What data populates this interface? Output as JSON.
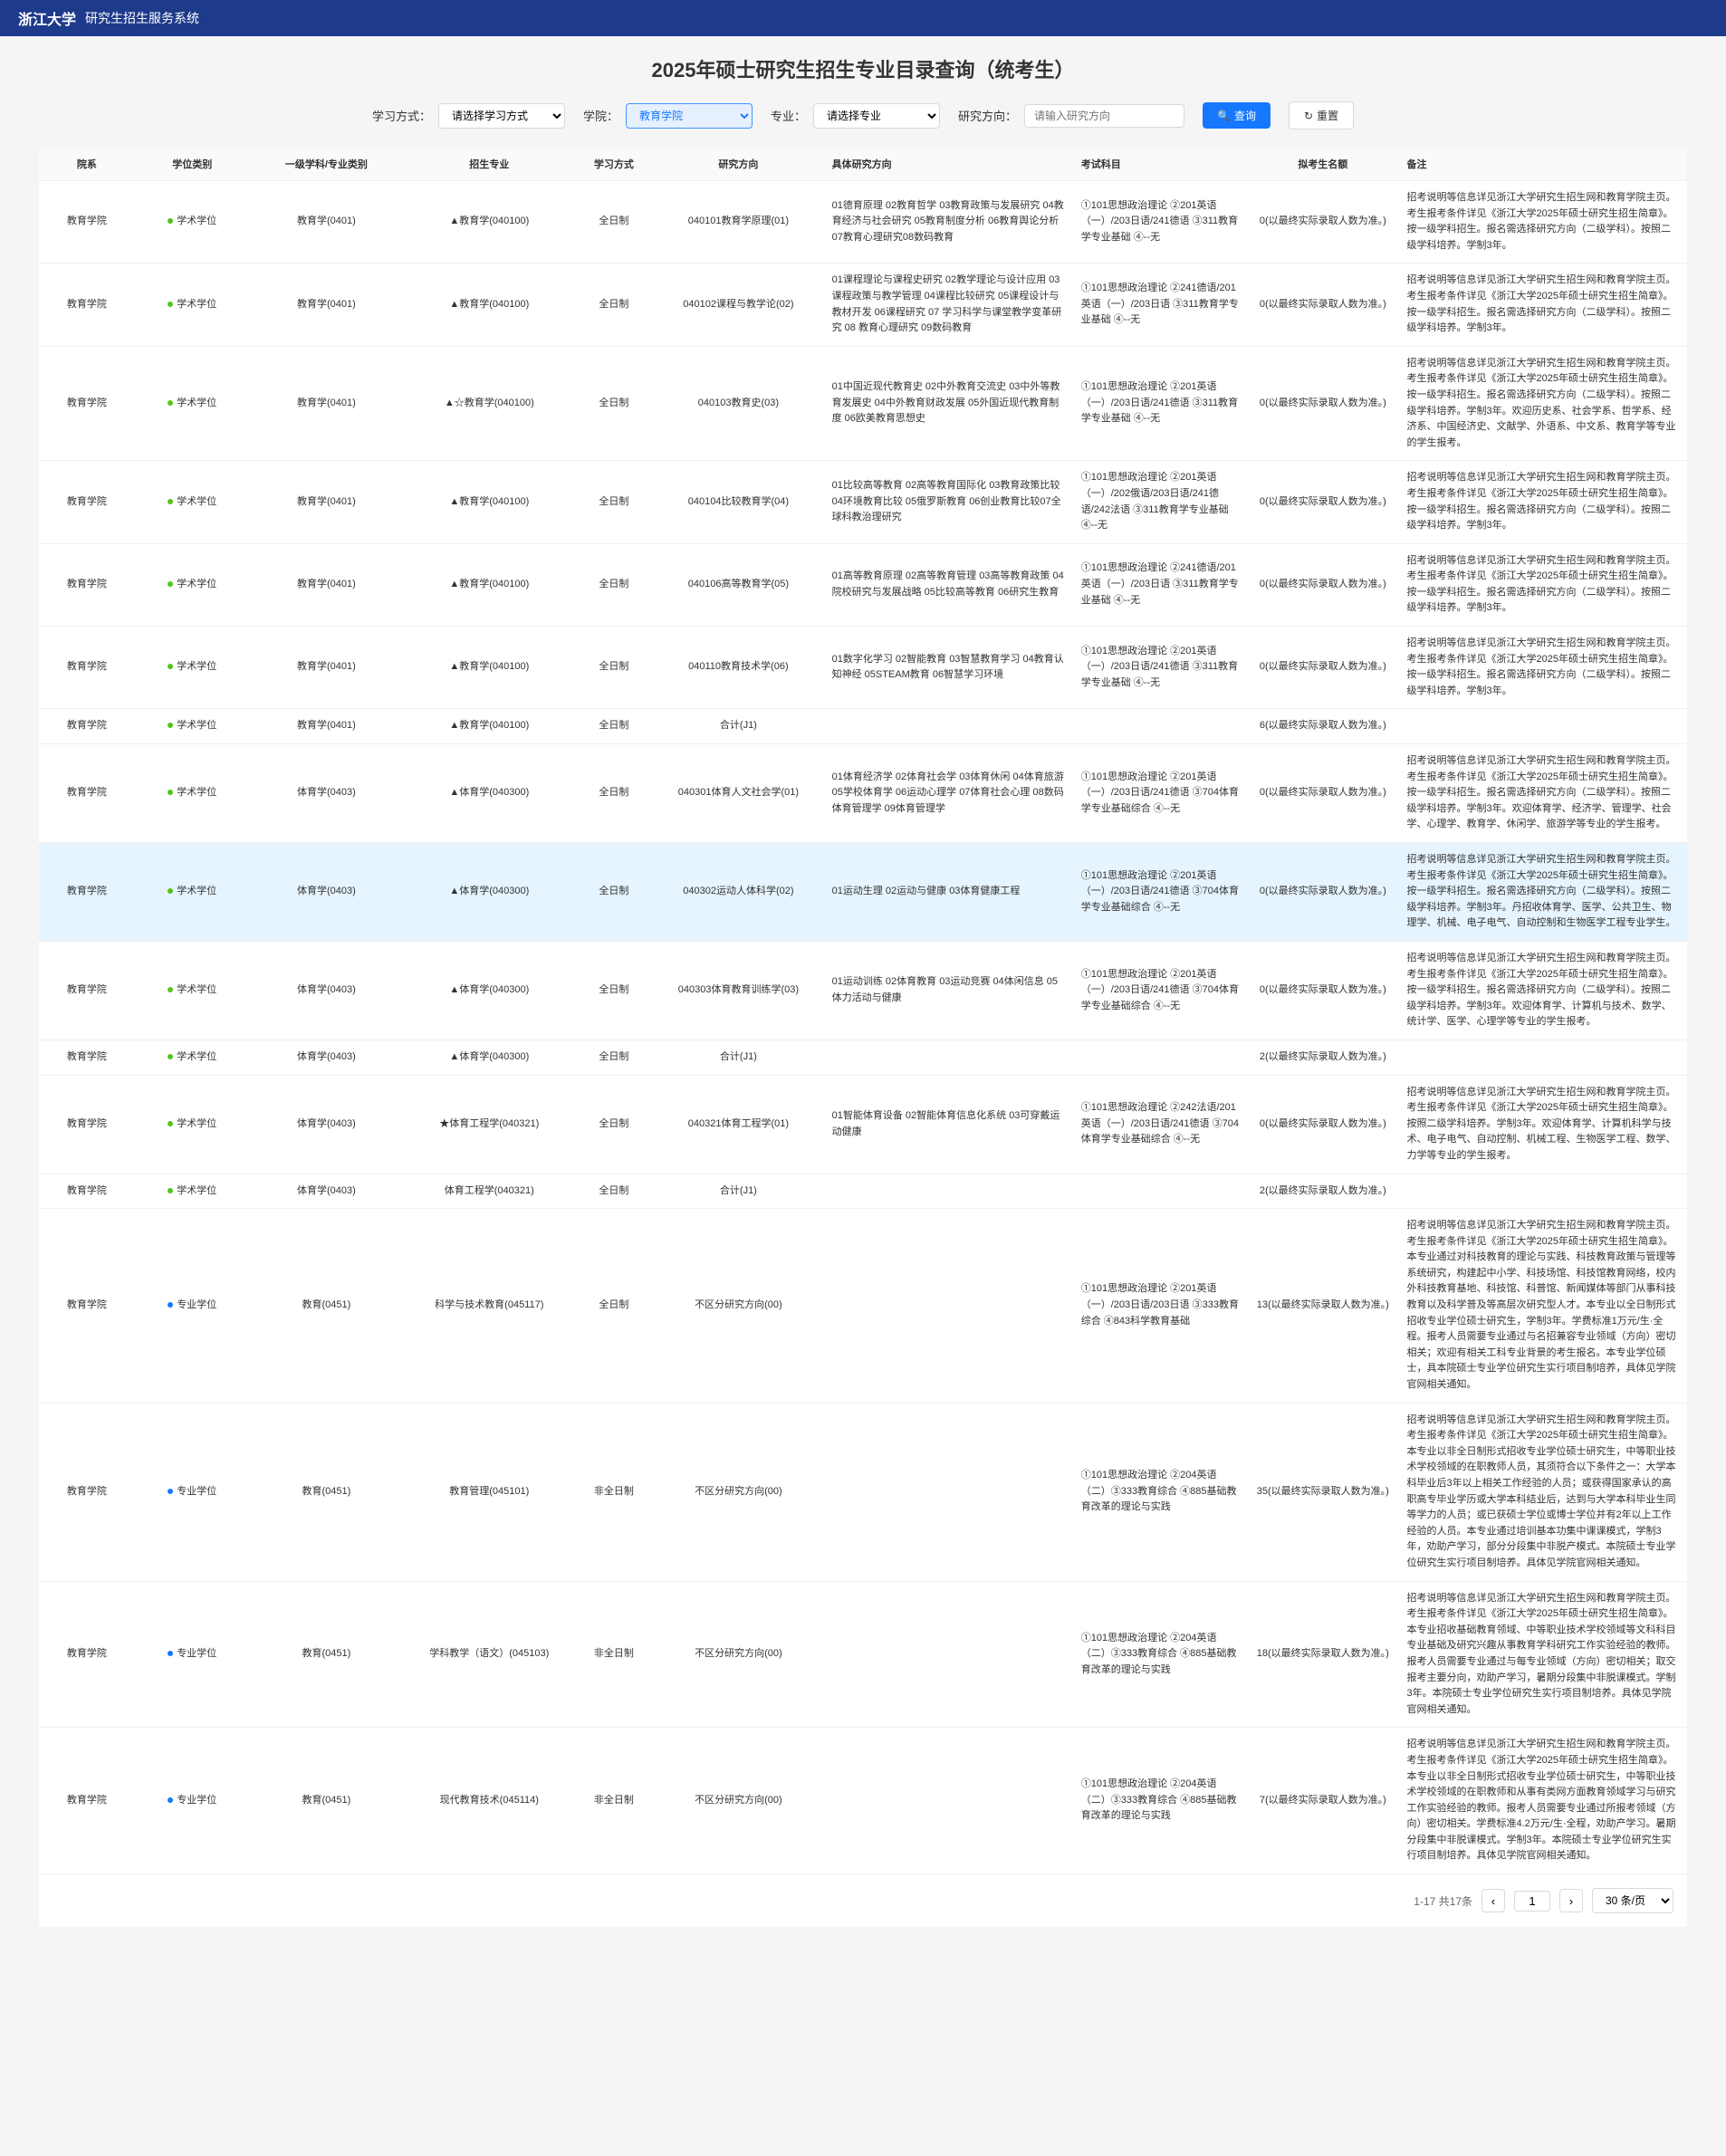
{
  "header": {
    "logo": "浙江大学",
    "system_name": "研究生招生服务系统"
  },
  "page_title": "2025年硕士研究生招生专业目录查询（统考生）",
  "filters": {
    "study_mode_label": "学习方式：",
    "study_mode_placeholder": "请选择学习方式",
    "college_label": "学院：",
    "college_value": "教育学院",
    "major_label": "专业：",
    "major_placeholder": "请选择专业",
    "direction_label": "研究方向：",
    "direction_placeholder": "请输入研究方向",
    "search_btn": "查询",
    "reset_btn": "重置"
  },
  "columns": [
    "院系",
    "学位类别",
    "一级学科/专业类别",
    "招生专业",
    "学习方式",
    "研究方向",
    "具体研究方向",
    "考试科目",
    "拟考生名额",
    "备注"
  ],
  "rows": [
    {
      "dept": "教育学院",
      "degree_dot": "green",
      "degree": "学术学位",
      "subject": "教育学(0401)",
      "major": "▲教育学(040100)",
      "mode": "全日制",
      "direction": "040101教育学原理(01)",
      "detail": "01德育原理 02教育哲学 03教育政策与发展研究 04教育经济与社会研究 05教育制度分析 06教育舆论分析 07教育心理研究08数码教育",
      "exam": "①101思想政治理论 ②201英语（一）/203日语/241德语 ③311教育学专业基础 ④--无",
      "quota": "0(以最终实际录取人数为准。)",
      "note": "招考说明等信息详见浙江大学研究生招生网和教育学院主页。考生报考条件详见《浙江大学2025年硕士研究生招生简章》。按一级学科招生。报名需选择研究方向（二级学科）。按照二级学科培养。学制3年。"
    },
    {
      "dept": "教育学院",
      "degree_dot": "green",
      "degree": "学术学位",
      "subject": "教育学(0401)",
      "major": "▲教育学(040100)",
      "mode": "全日制",
      "direction": "040102课程与教学论(02)",
      "detail": "01课程理论与课程史研究 02教学理论与设计应用 03课程政策与教学管理 04课程比较研究 05课程设计与教材开发 06课程研究 07 学习科学与课堂教学变革研究 08 教育心理研究 09数码教育",
      "exam": "①101思想政治理论 ②241德语/201英语（一）/203日语 ③311教育学专业基础 ④--无",
      "quota": "0(以最终实际录取人数为准。)",
      "note": "招考说明等信息详见浙江大学研究生招生网和教育学院主页。考生报考条件详见《浙江大学2025年硕士研究生招生简章》。按一级学科招生。报名需选择研究方向（二级学科）。按照二级学科培养。学制3年。"
    },
    {
      "dept": "教育学院",
      "degree_dot": "green",
      "degree": "学术学位",
      "subject": "教育学(0401)",
      "major": "▲☆教育学(040100)",
      "mode": "全日制",
      "direction": "040103教育史(03)",
      "detail": "01中国近现代教育史 02中外教育交流史 03中外等教育发展史 04中外教育财政发展 05外国近现代教育制度 06欧美教育思想史",
      "exam": "①101思想政治理论 ②201英语（一）/203日语/241德语 ③311教育学专业基础 ④--无",
      "quota": "0(以最终实际录取人数为准。)",
      "note": "招考说明等信息详见浙江大学研究生招生网和教育学院主页。考生报考条件详见《浙江大学2025年硕士研究生招生简章》。按一级学科招生。报名需选择研究方向（二级学科）。按照二级学科培养。学制3年。欢迎历史系、社会学系、哲学系、经济系、中国经济史、文献学、外语系、中文系、教育学等专业的学生报考。"
    },
    {
      "dept": "教育学院",
      "degree_dot": "green",
      "degree": "学术学位",
      "subject": "教育学(0401)",
      "major": "▲教育学(040100)",
      "mode": "全日制",
      "direction": "040104比较教育学(04)",
      "detail": "01比较高等教育 02高等教育国际化 03教育政策比较 04环境教育比较 05俄罗斯教育 06创业教育比较07全球科教治理研究",
      "exam": "①101思想政治理论 ②201英语（一）/202俄语/203日语/241德语/242法语 ③311教育学专业基础 ④--无",
      "quota": "0(以最终实际录取人数为准。)",
      "note": "招考说明等信息详见浙江大学研究生招生网和教育学院主页。考生报考条件详见《浙江大学2025年硕士研究生招生简章》。按一级学科招生。报名需选择研究方向（二级学科）。按照二级学科培养。学制3年。"
    },
    {
      "dept": "教育学院",
      "degree_dot": "green",
      "degree": "学术学位",
      "subject": "教育学(0401)",
      "major": "▲教育学(040100)",
      "mode": "全日制",
      "direction": "040106高等教育学(05)",
      "detail": "01高等教育原理 02高等教育管理 03高等教育政策 04院校研究与发展战略 05比较高等教育 06研究生教育",
      "exam": "①101思想政治理论 ②241德语/201英语（一）/203日语 ③311教育学专业基础 ④--无",
      "quota": "0(以最终实际录取人数为准。)",
      "note": "招考说明等信息详见浙江大学研究生招生网和教育学院主页。考生报考条件详见《浙江大学2025年硕士研究生招生简章》。按一级学科招生。报名需选择研究方向（二级学科）。按照二级学科培养。学制3年。"
    },
    {
      "dept": "教育学院",
      "degree_dot": "green",
      "degree": "学术学位",
      "subject": "教育学(0401)",
      "major": "▲教育学(040100)",
      "mode": "全日制",
      "direction": "040110教育技术学(06)",
      "detail": "01数字化学习 02智能教育 03智慧教育学习 04教育认知神经 05STEAM教育 06智慧学习环境",
      "exam": "①101思想政治理论 ②201英语（一）/203日语/241德语 ③311教育学专业基础 ④--无",
      "quota": "0(以最终实际录取人数为准。)",
      "note": "招考说明等信息详见浙江大学研究生招生网和教育学院主页。考生报考条件详见《浙江大学2025年硕士研究生招生简章》。按一级学科招生。报名需选择研究方向（二级学科）。按照二级学科培养。学制3年。"
    },
    {
      "dept": "教育学院",
      "degree_dot": "green",
      "degree": "学术学位",
      "subject": "教育学(0401)",
      "major": "▲教育学(040100)",
      "mode": "全日制",
      "direction": "合计(J1)",
      "detail": "",
      "exam": "",
      "quota": "6(以最终实际录取人数为准。)",
      "note": ""
    },
    {
      "dept": "教育学院",
      "degree_dot": "green",
      "degree": "学术学位",
      "subject": "体育学(0403)",
      "major": "▲体育学(040300)",
      "mode": "全日制",
      "direction": "040301体育人文社会学(01)",
      "detail": "01体育经济学 02体育社会学 03体育休闲 04体育旅游 05学校体育学 06运动心理学 07体育社会心理 08数码体育管理学 09体育管理学",
      "exam": "①101思想政治理论 ②201英语（一）/203日语/241德语 ③704体育学专业基础综合 ④--无",
      "quota": "0(以最终实际录取人数为准。)",
      "note": "招考说明等信息详见浙江大学研究生招生网和教育学院主页。考生报考条件详见《浙江大学2025年硕士研究生招生简章》。按一级学科招生。报名需选择研究方向（二级学科）。按照二级学科培养。学制3年。欢迎体育学、经济学、管理学、社会学、心理学、教育学、休闲学、旅游学等专业的学生报考。"
    },
    {
      "dept": "教育学院",
      "degree_dot": "green",
      "degree": "学术学位",
      "subject": "体育学(0403)",
      "major": "▲体育学(040300)",
      "mode": "全日制",
      "direction": "040302运动人体科学(02)",
      "highlighted": true,
      "detail": "01运动生理 02运动与健康 03体育健康工程",
      "exam": "①101思想政治理论 ②201英语（一）/203日语/241德语 ③704体育学专业基础综合 ④--无",
      "quota": "0(以最终实际录取人数为准。)",
      "note": "招考说明等信息详见浙江大学研究生招生网和教育学院主页。考生报考条件详见《浙江大学2025年硕士研究生招生简章》。按一级学科招生。报名需选择研究方向（二级学科）。按照二级学科培养。学制3年。丹招收体育学、医学、公共卫生、物理学、机械、电子电气、自动控制和生物医学工程专业学生。"
    },
    {
      "dept": "教育学院",
      "degree_dot": "green",
      "degree": "学术学位",
      "subject": "体育学(0403)",
      "major": "▲体育学(040300)",
      "mode": "全日制",
      "direction": "040303体育教育训练学(03)",
      "detail": "01运动训练 02体育教育 03运动竞赛 04体闲信息 05体力活动与健康",
      "exam": "①101思想政治理论 ②201英语（一）/203日语/241德语 ③704体育学专业基础综合 ④--无",
      "quota": "0(以最终实际录取人数为准。)",
      "note": "招考说明等信息详见浙江大学研究生招生网和教育学院主页。考生报考条件详见《浙江大学2025年硕士研究生招生简章》。按一级学科招生。报名需选择研究方向（二级学科）。按照二级学科培养。学制3年。欢迎体育学、计算机与技术、数学、统计学、医学、心理学等专业的学生报考。"
    },
    {
      "dept": "教育学院",
      "degree_dot": "green",
      "degree": "学术学位",
      "subject": "体育学(0403)",
      "major": "▲体育学(040300)",
      "mode": "全日制",
      "direction": "合计(J1)",
      "detail": "",
      "exam": "",
      "quota": "2(以最终实际录取人数为准。)",
      "note": ""
    },
    {
      "dept": "教育学院",
      "degree_dot": "green",
      "degree": "学术学位",
      "subject": "体育学(0403)",
      "major": "★体育工程学(040321)",
      "mode": "全日制",
      "direction": "040321体育工程学(01)",
      "detail": "01智能体育设备 02智能体育信息化系统 03可穿戴运动健康",
      "exam": "①101思想政治理论 ②242法语/201英语（一）/203日语/241德语 ③704体育学专业基础综合 ④--无",
      "quota": "0(以最终实际录取人数为准。)",
      "note": "招考说明等信息详见浙江大学研究生招生网和教育学院主页。考生报考条件详见《浙江大学2025年硕士研究生招生简章》。按照二级学科培养。学制3年。欢迎体育学、计算机科学与技术、电子电气、自动控制、机械工程、生物医学工程、数学、力学等专业的学生报考。"
    },
    {
      "dept": "教育学院",
      "degree_dot": "green",
      "degree": "学术学位",
      "subject": "体育学(0403)",
      "major": "体育工程学(040321)",
      "mode": "全日制",
      "direction": "合计(J1)",
      "detail": "",
      "exam": "",
      "quota": "2(以最终实际录取人数为准。)",
      "note": ""
    },
    {
      "dept": "教育学院",
      "degree_dot": "blue",
      "degree": "专业学位",
      "subject": "教育(0451)",
      "major": "科学与技术教育(045117)",
      "mode": "全日制",
      "direction": "不区分研究方向(00)",
      "detail": "",
      "exam": "①101思想政治理论 ②201英语（一）/203日语/203日语 ③333教育综合 ④843科学教育基础",
      "quota": "13(以最终实际录取人数为准。)",
      "note": "招考说明等信息详见浙江大学研究生招生网和教育学院主页。考生报考条件详见《浙江大学2025年硕士研究生招生简章》。本专业通过对科技教育的理论与实践、科技教育政策与管理等系统研究，构建起中小学、科技场馆、科技馆教育网络，校内外科技教育基地、科技馆、科普馆、新闻媒体等部门从事科技教育以及科学普及等高层次研究型人才。本专业以全日制形式招收专业学位硕士研究生，学制3年。学费标准1万元/生·全程。报考人员需要专业通过与名招兼容专业领域（方向）密切相关；欢迎有相关工科专业背景的考生报名。本专业学位硕士，具本院硕士专业学位研究生实行项目制培养，具体见学院官网相关通知。"
    },
    {
      "dept": "教育学院",
      "degree_dot": "blue",
      "degree": "专业学位",
      "subject": "教育(0451)",
      "major": "教育管理(045101)",
      "mode": "非全日制",
      "direction": "不区分研究方向(00)",
      "detail": "",
      "exam": "①101思想政治理论 ②204英语（二）③333教育综合 ④885基础教育改革的理论与实践",
      "quota": "35(以最终实际录取人数为准。)",
      "note": "招考说明等信息详见浙江大学研究生招生网和教育学院主页。考生报考条件详见《浙江大学2025年硕士研究生招生简章》。本专业以非全日制形式招收专业学位硕士研究生，中等职业技术学校领域的在职教师人员，其须符合以下条件之一：大学本科毕业后3年以上相关工作经验的人员；或获得国家承认的高职高专毕业学历或大学本科结业后，达到与大学本科毕业生同等学力的人员；或已获硕士学位或博士学位并有2年以上工作经验的人员。本专业通过培训基本功集中课课模式，学制3年，劝助产学习，部分分段集中非脱产模式。本院硕士专业学位研究生实行项目制培养。具体见学院官网相关通知。"
    },
    {
      "dept": "教育学院",
      "degree_dot": "blue",
      "degree": "专业学位",
      "subject": "教育(0451)",
      "major": "学科教学（语文）(045103)",
      "mode": "非全日制",
      "direction": "不区分研究方向(00)",
      "detail": "",
      "exam": "①101思想政治理论 ②204英语（二）③333教育综合 ④885基础教育改革的理论与实践",
      "quota": "18(以最终实际录取人数为准。)",
      "note": "招考说明等信息详见浙江大学研究生招生网和教育学院主页。考生报考条件详见《浙江大学2025年硕士研究生招生简章》。本专业招收基础教育领域、中等职业技术学校领域等文科科目专业基础及研究兴趣从事教育学科研究工作实验经验的教师。报考人员需要专业通过与每专业领域（方向）密切相关；取交报考主要分向，劝助产学习，暑期分段集中非脱课模式。学制3年。本院硕士专业学位研究生实行项目制培养。具体见学院官网相关通知。"
    },
    {
      "dept": "教育学院",
      "degree_dot": "blue",
      "degree": "专业学位",
      "subject": "教育(0451)",
      "major": "现代教育技术(045114)",
      "mode": "非全日制",
      "direction": "不区分研究方向(00)",
      "detail": "",
      "exam": "①101思想政治理论 ②204英语（二）③333教育综合 ④885基础教育改革的理论与实践",
      "quota": "7(以最终实际录取人数为准。)",
      "note": "招考说明等信息详见浙江大学研究生招生网和教育学院主页。考生报考条件详见《浙江大学2025年硕士研究生招生简章》。本专业以非全日制形式招收专业学位硕士研究生，中等职业技术学校领域的在职教师和从事有类网方面教育领域学习与研究工作实验经验的教师。报考人员需要专业通过所报考领域（方向）密切相关。学费标准4.2万元/生·全程，劝助产学习。暑期分段集中非脱课模式。学制3年。本院硕士专业学位研究生实行项目制培养。具体见学院官网相关通知。"
    }
  ],
  "pagination": {
    "info": "1-17 共17条",
    "current_page": "1",
    "per_page": "30 条/页"
  }
}
